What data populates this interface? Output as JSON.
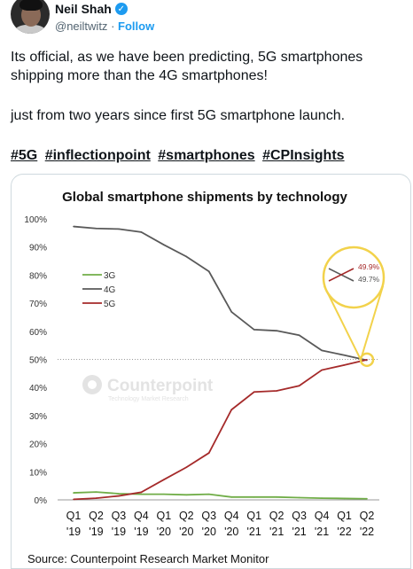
{
  "author": {
    "name": "Neil Shah",
    "handle": "@neiltwitz",
    "separator": "·",
    "follow_label": "Follow"
  },
  "tweet": {
    "line1": "Its official, as we have been predicting, 5G smartphones shipping more than the 4G smartphones!",
    "line2": "just from two years since first 5G smartphone launch.",
    "hashtags": [
      "#5G",
      "#inflectionpoint",
      "#smartphones",
      "#CPInsights"
    ]
  },
  "chart_data": {
    "type": "line",
    "title": "Global smartphone shipments by technology",
    "categories": [
      "Q1 '19",
      "Q2 '19",
      "Q3 '19",
      "Q4 '19",
      "Q1 '20",
      "Q2 '20",
      "Q3 '20",
      "Q4 '20",
      "Q1 '21",
      "Q2 '21",
      "Q3 '21",
      "Q4 '21",
      "Q1 '22",
      "Q2 '22"
    ],
    "x_tick_top": [
      "Q1",
      "Q2",
      "Q3",
      "Q4",
      "Q1",
      "Q2",
      "Q3",
      "Q4",
      "Q1",
      "Q2",
      "Q3",
      "Q4",
      "Q1",
      "Q2"
    ],
    "x_tick_bottom": [
      "'19",
      "'19",
      "'19",
      "'19",
      "'20",
      "'20",
      "'20",
      "'20",
      "'21",
      "'21",
      "'21",
      "'21",
      "'22",
      "'22"
    ],
    "y_ticks": [
      "0%",
      "10%",
      "20%",
      "30%",
      "40%",
      "50%",
      "60%",
      "70%",
      "80%",
      "90%",
      "100%"
    ],
    "ylim": [
      0,
      100
    ],
    "reference_line": 50,
    "legend_position": "left",
    "series": [
      {
        "name": "3G",
        "color": "#70ad47",
        "values": [
          2.5,
          2.8,
          2.2,
          2.0,
          2.0,
          1.8,
          2.0,
          1.0,
          1.0,
          1.0,
          0.8,
          0.6,
          0.5,
          0.4
        ]
      },
      {
        "name": "4G",
        "color": "#595959",
        "values": [
          97.3,
          96.6,
          96.4,
          95.3,
          90.8,
          86.6,
          81.3,
          66.9,
          60.6,
          60.2,
          58.6,
          53.2,
          51.5,
          49.7
        ]
      },
      {
        "name": "5G",
        "color": "#a52a2a",
        "values": [
          0.2,
          0.6,
          1.4,
          2.7,
          7.2,
          11.6,
          16.7,
          32.1,
          38.4,
          38.8,
          40.6,
          46.2,
          48.0,
          49.9
        ]
      }
    ],
    "callout": {
      "label_5g": "49.9%",
      "label_4g": "49.7%",
      "ring_color": "#f2d24b"
    },
    "watermark": {
      "brand": "Counterpoint",
      "tagline": "Technology Market Research"
    },
    "source": "Source: Counterpoint Research Market Monitor"
  }
}
